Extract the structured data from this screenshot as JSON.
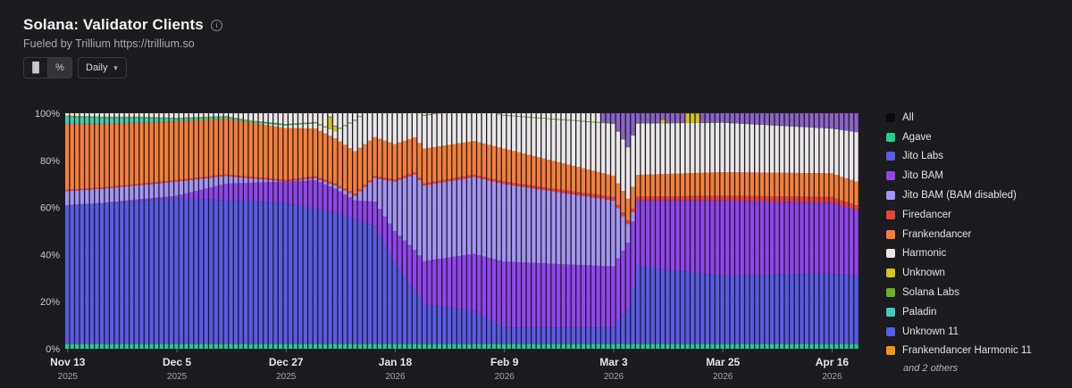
{
  "header": {
    "title": "Solana: Validator Clients",
    "subtitle": "Fueled by Trillium https://trillium.so",
    "info_icon": "info-icon"
  },
  "toolbar": {
    "chart_type_buttons": [
      {
        "icon": "bar-chart-icon",
        "glyph": "▐▌"
      },
      {
        "icon": "percent-icon",
        "glyph": "%"
      }
    ],
    "active_button": 1,
    "interval_label": "Daily"
  },
  "legend": {
    "items": [
      {
        "label": "All",
        "color": "#0a0a0a"
      },
      {
        "label": "Agave",
        "color": "#1fcf8c"
      },
      {
        "label": "Jito Labs",
        "color": "#5a5ae6"
      },
      {
        "label": "Jito BAM",
        "color": "#9045ef"
      },
      {
        "label": "Jito BAM (BAM disabled)",
        "color": "#a394f4"
      },
      {
        "label": "Firedancer",
        "color": "#ee4139"
      },
      {
        "label": "Frankendancer",
        "color": "#f57f3a"
      },
      {
        "label": "Harmonic",
        "color": "#ebe7e9"
      },
      {
        "label": "Unknown",
        "color": "#d6c319"
      },
      {
        "label": "Solana Labs",
        "color": "#68b025"
      },
      {
        "label": "Paladin",
        "color": "#3fcdb8"
      },
      {
        "label": "Unknown 11",
        "color": "#4f63e8"
      },
      {
        "label": "Frankendancer Harmonic 11",
        "color": "#f5940e"
      }
    ],
    "more_label": "and 2 others"
  },
  "chart_data": {
    "type": "bar",
    "stacked": true,
    "normalized": true,
    "title": "Solana: Validator Clients",
    "ylim": [
      0,
      100
    ],
    "y_ticks": [
      "0%",
      "20%",
      "40%",
      "60%",
      "80%",
      "100%"
    ],
    "x_ticks": [
      {
        "label": "Nov 13",
        "year": "2025"
      },
      {
        "label": "Dec 5",
        "year": "2025"
      },
      {
        "label": "Dec 27",
        "year": "2025"
      },
      {
        "label": "Jan 18",
        "year": "2026"
      },
      {
        "label": "Feb 9",
        "year": "2026"
      },
      {
        "label": "Mar 3",
        "year": "2026"
      },
      {
        "label": "Mar 25",
        "year": "2026"
      },
      {
        "label": "Apr 16",
        "year": "2026"
      }
    ],
    "first_date": "2025-11-13",
    "last_date": "2026-04-21",
    "series_order": [
      "Agave",
      "Jito Labs",
      "Jito BAM",
      "Jito BAM (BAM disabled)",
      "Firedancer",
      "Frankendancer",
      "Harmonic",
      "Unknown",
      "Paladin",
      "Solana Labs"
    ],
    "series": [
      {
        "name": "Agave",
        "color": "#1fcf8c",
        "keyframes": [
          [
            "2025-11-13",
            2
          ],
          [
            "2026-04-21",
            2
          ]
        ]
      },
      {
        "name": "Jito Labs",
        "color": "#5a5ae6",
        "keyframes": [
          [
            "2025-11-13",
            59
          ],
          [
            "2025-11-28",
            61
          ],
          [
            "2025-12-05",
            62
          ],
          [
            "2025-12-27",
            60
          ],
          [
            "2026-01-06",
            56
          ],
          [
            "2026-01-14",
            50
          ],
          [
            "2026-01-18",
            35
          ],
          [
            "2026-01-24",
            17
          ],
          [
            "2026-02-03",
            14
          ],
          [
            "2026-02-09",
            7
          ],
          [
            "2026-03-03",
            7
          ],
          [
            "2026-03-06",
            15
          ],
          [
            "2026-03-08",
            33
          ],
          [
            "2026-03-25",
            29
          ],
          [
            "2026-04-16",
            30
          ],
          [
            "2026-04-21",
            29
          ]
        ]
      },
      {
        "name": "Jito BAM",
        "color": "#9045ef",
        "keyframes": [
          [
            "2025-11-13",
            0
          ],
          [
            "2025-11-20",
            0
          ],
          [
            "2025-12-05",
            1
          ],
          [
            "2025-12-15",
            7
          ],
          [
            "2025-12-27",
            9
          ],
          [
            "2026-01-02",
            12
          ],
          [
            "2026-01-10",
            8
          ],
          [
            "2026-01-18",
            13
          ],
          [
            "2026-01-22",
            17
          ],
          [
            "2026-02-09",
            28
          ],
          [
            "2026-03-03",
            26
          ],
          [
            "2026-03-06",
            28
          ],
          [
            "2026-03-08",
            28
          ],
          [
            "2026-03-25",
            32
          ],
          [
            "2026-04-16",
            30
          ],
          [
            "2026-04-21",
            28
          ]
        ]
      },
      {
        "name": "Jito BAM (BAM disabled)",
        "color": "#a394f4",
        "keyframes": [
          [
            "2025-11-13",
            6
          ],
          [
            "2025-12-05",
            6
          ],
          [
            "2025-12-27",
            0
          ],
          [
            "2026-01-10",
            2
          ],
          [
            "2026-01-14",
            10
          ],
          [
            "2026-01-22",
            32
          ],
          [
            "2026-02-09",
            33
          ],
          [
            "2026-03-03",
            28
          ],
          [
            "2026-03-06",
            8
          ],
          [
            "2026-03-08",
            0
          ],
          [
            "2026-04-21",
            0
          ]
        ]
      },
      {
        "name": "Firedancer",
        "color": "#ee4139",
        "keyframes": [
          [
            "2025-11-13",
            0.5
          ],
          [
            "2026-02-09",
            1
          ],
          [
            "2026-03-03",
            1.5
          ],
          [
            "2026-03-25",
            2
          ],
          [
            "2026-04-16",
            2.5
          ],
          [
            "2026-04-21",
            2
          ]
        ]
      },
      {
        "name": "Frankendancer",
        "color": "#f57f3a",
        "keyframes": [
          [
            "2025-11-13",
            28
          ],
          [
            "2025-12-05",
            25
          ],
          [
            "2025-12-27",
            22
          ],
          [
            "2026-01-10",
            18
          ],
          [
            "2026-01-18",
            15
          ],
          [
            "2026-02-09",
            14
          ],
          [
            "2026-03-03",
            9
          ],
          [
            "2026-03-25",
            10
          ],
          [
            "2026-04-16",
            10
          ],
          [
            "2026-04-21",
            10
          ]
        ]
      },
      {
        "name": "Harmonic",
        "color": "#ebe7e9",
        "keyframes": [
          [
            "2025-11-13",
            0
          ],
          [
            "2025-12-20",
            0
          ],
          [
            "2025-12-27",
            1
          ],
          [
            "2026-01-06",
            3
          ],
          [
            "2026-01-10",
            13
          ],
          [
            "2026-01-18",
            14
          ],
          [
            "2026-02-09",
            14
          ],
          [
            "2026-03-03",
            22
          ],
          [
            "2026-03-25",
            21
          ],
          [
            "2026-04-16",
            19
          ],
          [
            "2026-04-21",
            21
          ]
        ]
      },
      {
        "name": "Unknown",
        "color": "#d6c319",
        "keyframes": [
          [
            "2025-11-13",
            0
          ],
          [
            "2026-04-21",
            0
          ]
        ]
      },
      {
        "name": "Paladin",
        "color": "#3fcdb8",
        "keyframes": [
          [
            "2025-11-13",
            3
          ],
          [
            "2025-11-28",
            2
          ],
          [
            "2025-12-05",
            1
          ],
          [
            "2026-01-06",
            0
          ],
          [
            "2026-04-21",
            0
          ]
        ]
      },
      {
        "name": "Solana Labs",
        "color": "#68b025",
        "keyframes": [
          [
            "2025-11-13",
            0.5
          ],
          [
            "2026-02-09",
            0.3
          ],
          [
            "2026-03-03",
            0.3
          ],
          [
            "2026-04-21",
            0
          ]
        ]
      }
    ],
    "unknown_spikes": [
      [
        "2026-01-05",
        5
      ],
      [
        "2026-01-06",
        2
      ],
      [
        "2026-03-13",
        1.5
      ],
      [
        "2026-03-18",
        4
      ],
      [
        "2026-03-19",
        4
      ],
      [
        "2026-03-20",
        4
      ]
    ],
    "extra_remainder_color": "#8b63c9"
  }
}
